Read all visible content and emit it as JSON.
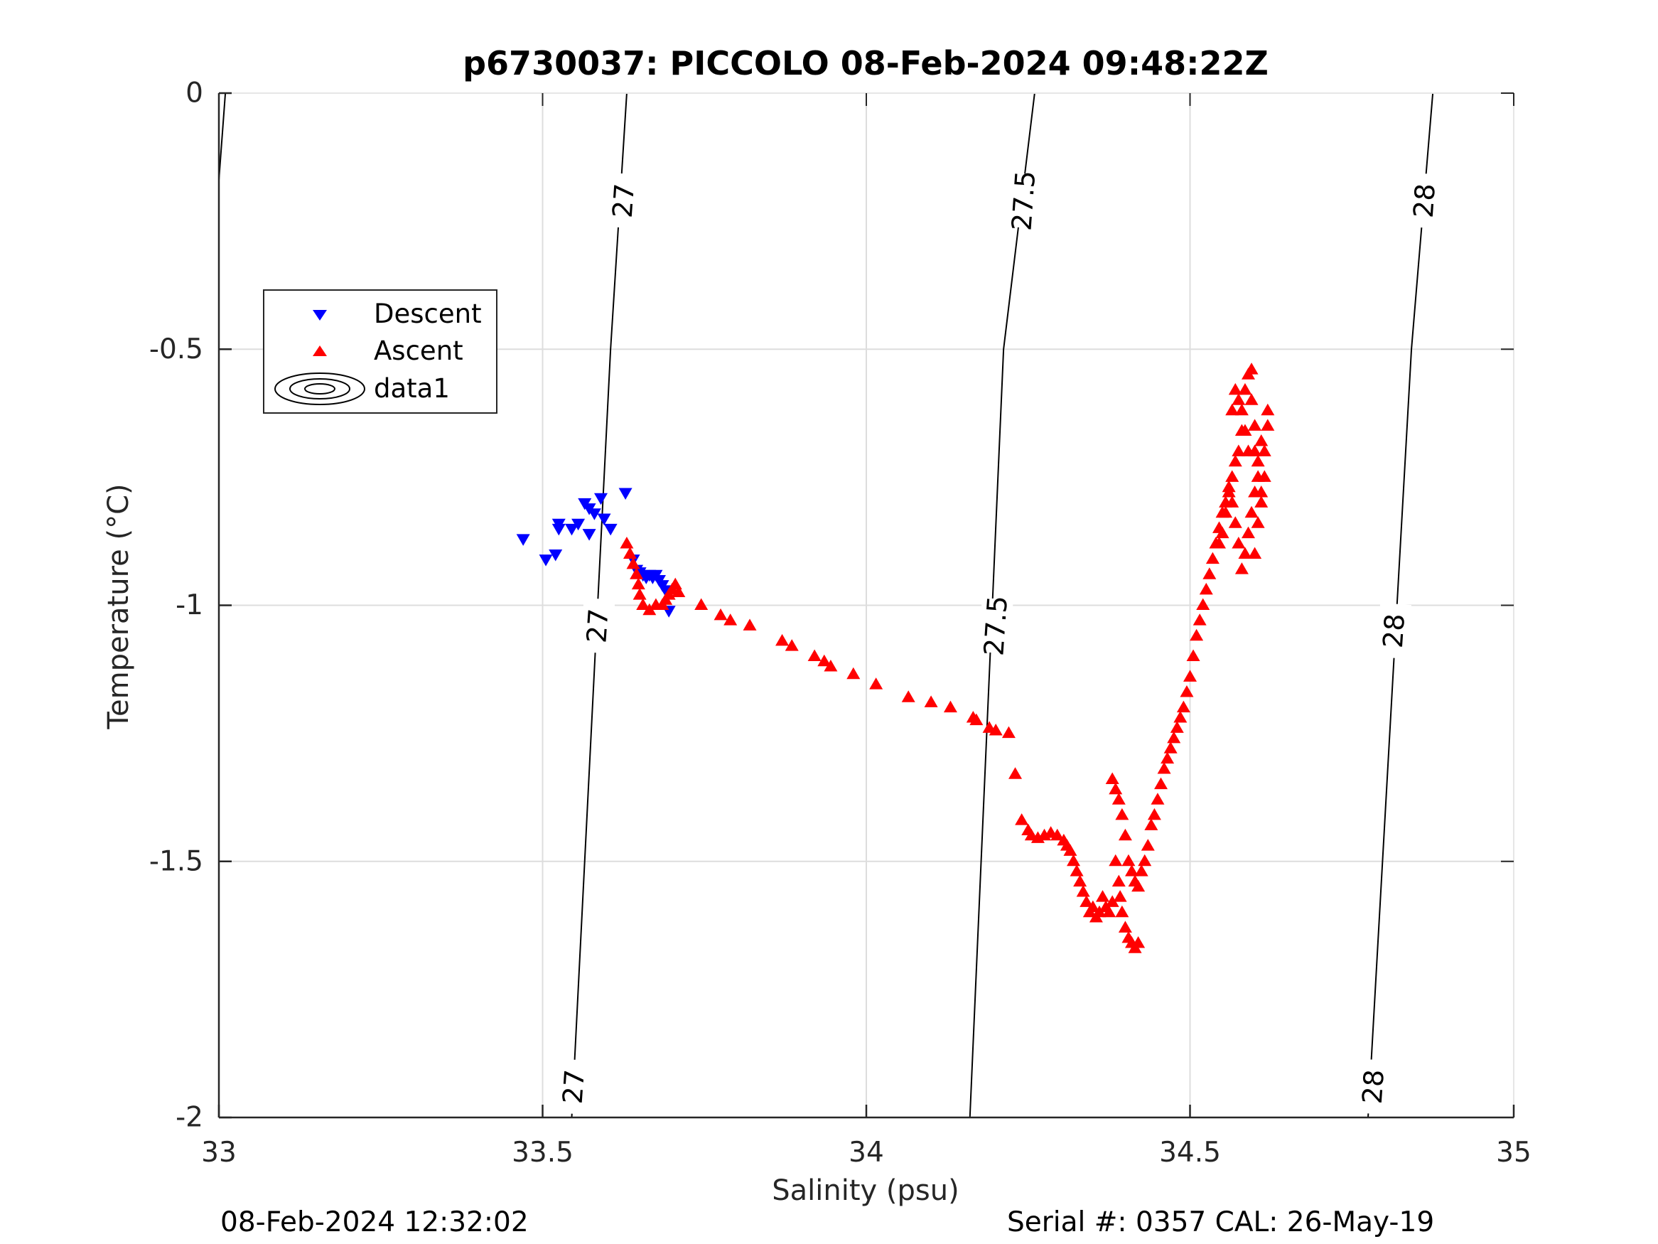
{
  "chart_data": {
    "type": "scatter",
    "title": "p6730037: PICCOLO 08-Feb-2024 09:48:22Z",
    "xlabel": "Salinity (psu)",
    "ylabel": "Temperature (°C)",
    "xlim": [
      33,
      35
    ],
    "ylim": [
      -2,
      0
    ],
    "xticks": [
      33,
      33.5,
      34,
      34.5,
      35
    ],
    "xtick_labels": [
      "33",
      "33.5",
      "34",
      "34.5",
      "35"
    ],
    "yticks": [
      -2,
      -1.5,
      -1,
      -0.5,
      0
    ],
    "ytick_labels": [
      "-2",
      "-1.5",
      "-1",
      "-0.5",
      "0"
    ],
    "grid": true,
    "legend_position": "upper-left",
    "legend": [
      "Descent",
      "Ascent",
      "data1"
    ],
    "colors": {
      "descent": "#0000ff",
      "ascent": "#ff0000",
      "contour": "#000000",
      "grid": "#dddddd"
    },
    "contours": [
      {
        "level": "27",
        "points": [
          [
            33.545,
            -2.0
          ],
          [
            33.605,
            -0.5
          ],
          [
            33.63,
            0.0
          ]
        ]
      },
      {
        "level": "27.5",
        "points": [
          [
            34.16,
            -2.0
          ],
          [
            34.212,
            -0.5
          ],
          [
            34.26,
            0.0
          ]
        ]
      },
      {
        "level": "28",
        "points": [
          [
            34.775,
            -2.0
          ],
          [
            34.842,
            -0.5
          ],
          [
            34.875,
            0.0
          ]
        ]
      },
      {
        "level": "",
        "points": [
          [
            33.0,
            -0.17
          ],
          [
            33.01,
            0.0
          ]
        ]
      }
    ],
    "contour_labels": [
      {
        "text": "27",
        "s": 33.625,
        "t": -0.21
      },
      {
        "text": "27",
        "s": 33.585,
        "t": -1.04
      },
      {
        "text": "27",
        "s": 33.548,
        "t": -1.94
      },
      {
        "text": "27.5",
        "s": 34.243,
        "t": -0.21
      },
      {
        "text": "27.5",
        "s": 34.2,
        "t": -1.04
      },
      {
        "text": "28",
        "s": 34.862,
        "t": -0.21
      },
      {
        "text": "28",
        "s": 34.815,
        "t": -1.05
      },
      {
        "text": "28",
        "s": 34.783,
        "t": -1.94
      }
    ],
    "series": [
      {
        "name": "Descent",
        "marker": "triangle-down",
        "points": [
          [
            33.47,
            -0.87
          ],
          [
            33.505,
            -0.91
          ],
          [
            33.52,
            -0.9
          ],
          [
            33.525,
            -0.84
          ],
          [
            33.525,
            -0.85
          ],
          [
            33.545,
            -0.85
          ],
          [
            33.555,
            -0.84
          ],
          [
            33.565,
            -0.8
          ],
          [
            33.572,
            -0.81
          ],
          [
            33.572,
            -0.86
          ],
          [
            33.58,
            -0.82
          ],
          [
            33.59,
            -0.79
          ],
          [
            33.595,
            -0.83
          ],
          [
            33.605,
            -0.85
          ],
          [
            33.628,
            -0.78
          ],
          [
            33.64,
            -0.91
          ],
          [
            33.645,
            -0.93
          ],
          [
            33.65,
            -0.935
          ],
          [
            33.655,
            -0.94
          ],
          [
            33.66,
            -0.945
          ],
          [
            33.665,
            -0.94
          ],
          [
            33.67,
            -0.945
          ],
          [
            33.675,
            -0.94
          ],
          [
            33.68,
            -0.95
          ],
          [
            33.685,
            -0.96
          ],
          [
            33.69,
            -0.97
          ],
          [
            33.695,
            -1.01
          ]
        ]
      },
      {
        "name": "Ascent",
        "marker": "triangle-up",
        "points": [
          [
            33.63,
            -0.88
          ],
          [
            33.635,
            -0.9
          ],
          [
            33.64,
            -0.92
          ],
          [
            33.645,
            -0.94
          ],
          [
            33.648,
            -0.96
          ],
          [
            33.65,
            -0.98
          ],
          [
            33.655,
            -1.0
          ],
          [
            33.665,
            -1.01
          ],
          [
            33.675,
            -1.0
          ],
          [
            33.685,
            -1.0
          ],
          [
            33.69,
            -0.99
          ],
          [
            33.695,
            -0.98
          ],
          [
            33.7,
            -0.97
          ],
          [
            33.705,
            -0.96
          ],
          [
            33.71,
            -0.975
          ],
          [
            33.745,
            -1.0
          ],
          [
            33.775,
            -1.02
          ],
          [
            33.79,
            -1.03
          ],
          [
            33.82,
            -1.04
          ],
          [
            33.87,
            -1.07
          ],
          [
            33.885,
            -1.08
          ],
          [
            33.92,
            -1.1
          ],
          [
            33.935,
            -1.11
          ],
          [
            33.945,
            -1.12
          ],
          [
            33.98,
            -1.135
          ],
          [
            34.015,
            -1.155
          ],
          [
            34.065,
            -1.18
          ],
          [
            34.1,
            -1.19
          ],
          [
            34.13,
            -1.2
          ],
          [
            34.165,
            -1.22
          ],
          [
            34.17,
            -1.225
          ],
          [
            34.19,
            -1.24
          ],
          [
            34.2,
            -1.245
          ],
          [
            34.22,
            -1.25
          ],
          [
            34.23,
            -1.33
          ],
          [
            34.24,
            -1.42
          ],
          [
            34.25,
            -1.44
          ],
          [
            34.255,
            -1.45
          ],
          [
            34.265,
            -1.455
          ],
          [
            34.275,
            -1.45
          ],
          [
            34.285,
            -1.445
          ],
          [
            34.295,
            -1.45
          ],
          [
            34.305,
            -1.46
          ],
          [
            34.31,
            -1.47
          ],
          [
            34.315,
            -1.48
          ],
          [
            34.32,
            -1.5
          ],
          [
            34.325,
            -1.52
          ],
          [
            34.33,
            -1.54
          ],
          [
            34.335,
            -1.56
          ],
          [
            34.34,
            -1.58
          ],
          [
            34.345,
            -1.6
          ],
          [
            34.35,
            -1.59
          ],
          [
            34.355,
            -1.61
          ],
          [
            34.36,
            -1.6
          ],
          [
            34.365,
            -1.57
          ],
          [
            34.37,
            -1.59
          ],
          [
            34.375,
            -1.6
          ],
          [
            34.38,
            -1.58
          ],
          [
            34.385,
            -1.5
          ],
          [
            34.39,
            -1.54
          ],
          [
            34.392,
            -1.57
          ],
          [
            34.395,
            -1.6
          ],
          [
            34.4,
            -1.63
          ],
          [
            34.405,
            -1.65
          ],
          [
            34.41,
            -1.66
          ],
          [
            34.415,
            -1.67
          ],
          [
            34.42,
            -1.66
          ],
          [
            34.38,
            -1.34
          ],
          [
            34.385,
            -1.36
          ],
          [
            34.39,
            -1.38
          ],
          [
            34.395,
            -1.41
          ],
          [
            34.4,
            -1.45
          ],
          [
            34.405,
            -1.5
          ],
          [
            34.41,
            -1.52
          ],
          [
            34.415,
            -1.54
          ],
          [
            34.42,
            -1.55
          ],
          [
            34.425,
            -1.52
          ],
          [
            34.43,
            -1.5
          ],
          [
            34.435,
            -1.47
          ],
          [
            34.44,
            -1.43
          ],
          [
            34.445,
            -1.41
          ],
          [
            34.45,
            -1.38
          ],
          [
            34.455,
            -1.35
          ],
          [
            34.46,
            -1.32
          ],
          [
            34.465,
            -1.3
          ],
          [
            34.47,
            -1.28
          ],
          [
            34.475,
            -1.26
          ],
          [
            34.48,
            -1.24
          ],
          [
            34.485,
            -1.22
          ],
          [
            34.49,
            -1.2
          ],
          [
            34.495,
            -1.17
          ],
          [
            34.5,
            -1.14
          ],
          [
            34.505,
            -1.1
          ],
          [
            34.51,
            -1.06
          ],
          [
            34.515,
            -1.03
          ],
          [
            34.52,
            -1.0
          ],
          [
            34.525,
            -0.97
          ],
          [
            34.53,
            -0.94
          ],
          [
            34.535,
            -0.91
          ],
          [
            34.54,
            -0.88
          ],
          [
            34.545,
            -0.85
          ],
          [
            34.55,
            -0.82
          ],
          [
            34.555,
            -0.8
          ],
          [
            34.56,
            -0.77
          ],
          [
            34.565,
            -0.75
          ],
          [
            34.57,
            -0.72
          ],
          [
            34.575,
            -0.7
          ],
          [
            34.58,
            -0.66
          ],
          [
            34.58,
            -0.62
          ],
          [
            34.585,
            -0.58
          ],
          [
            34.59,
            -0.55
          ],
          [
            34.595,
            -0.54
          ],
          [
            34.595,
            -0.6
          ],
          [
            34.6,
            -0.65
          ],
          [
            34.6,
            -0.7
          ],
          [
            34.605,
            -0.75
          ],
          [
            34.61,
            -0.8
          ],
          [
            34.615,
            -0.75
          ],
          [
            34.615,
            -0.7
          ],
          [
            34.62,
            -0.65
          ],
          [
            34.62,
            -0.62
          ],
          [
            34.61,
            -0.68
          ],
          [
            34.605,
            -0.72
          ],
          [
            34.6,
            -0.78
          ],
          [
            34.595,
            -0.82
          ],
          [
            34.59,
            -0.86
          ],
          [
            34.585,
            -0.9
          ],
          [
            34.58,
            -0.93
          ],
          [
            34.575,
            -0.88
          ],
          [
            34.57,
            -0.84
          ],
          [
            34.565,
            -0.8
          ],
          [
            34.56,
            -0.78
          ],
          [
            34.555,
            -0.82
          ],
          [
            34.55,
            -0.86
          ],
          [
            34.545,
            -0.88
          ],
          [
            34.6,
            -0.9
          ],
          [
            34.605,
            -0.84
          ],
          [
            34.61,
            -0.78
          ],
          [
            34.59,
            -0.7
          ],
          [
            34.585,
            -0.66
          ],
          [
            34.575,
            -0.6
          ],
          [
            34.57,
            -0.58
          ],
          [
            34.565,
            -0.62
          ]
        ]
      }
    ]
  },
  "footer": {
    "left": "08-Feb-2024 12:32:02",
    "right": "Serial #: 0357  CAL: 26-May-19"
  }
}
